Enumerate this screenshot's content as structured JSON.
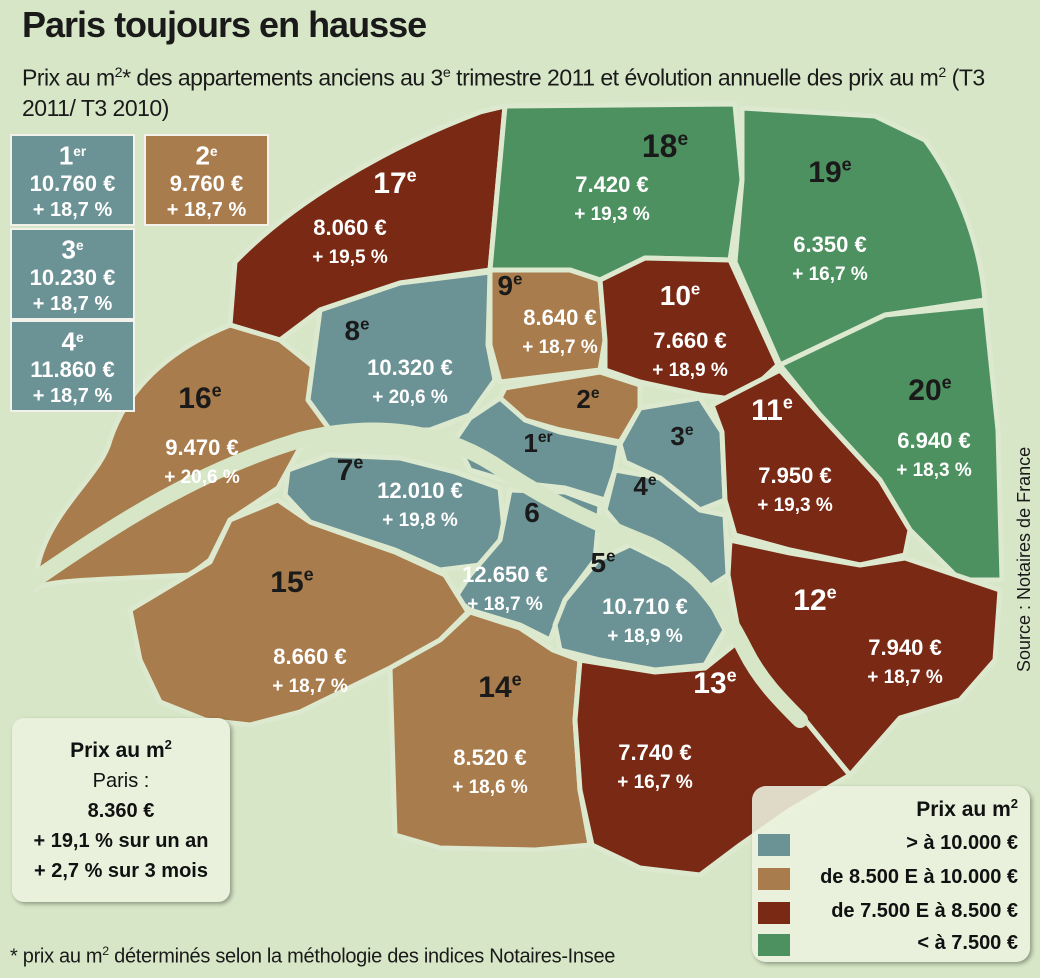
{
  "title": "Paris toujours en hausse",
  "subtitle_parts": [
    "Prix au m",
    "2",
    "* des appartements anciens au 3",
    "e",
    " trimestre 2011 et évolution annuelle des prix au m",
    "2",
    " (T3 2011/ T3 2010)"
  ],
  "colors": {
    "above_10000": "#6b9294",
    "8500_10000": "#a87c4c",
    "7500_8500": "#7a2a14",
    "below_7500": "#4e9160",
    "background": "#d6e6c6",
    "river": "#d6e6c6"
  },
  "districts": [
    {
      "label": "17",
      "suffix": "e",
      "price": "8.060 €",
      "evolution": "+ 19,5 %"
    },
    {
      "label": "18",
      "suffix": "e",
      "price": "7.420 €",
      "evolution": "+ 19,3 %"
    },
    {
      "label": "19",
      "suffix": "e",
      "price": "6.350 €",
      "evolution": "+ 16,7 %"
    },
    {
      "label": "16",
      "suffix": "e",
      "price": "9.470 €",
      "evolution": "+ 20,6 %"
    },
    {
      "label": "8",
      "suffix": "e",
      "price": "10.320 €",
      "evolution": "+ 20,6 %"
    },
    {
      "label": "9",
      "suffix": "e",
      "price": "8.640 €",
      "evolution": "+ 18,7 %"
    },
    {
      "label": "10",
      "suffix": "e",
      "price": "7.660 €",
      "evolution": "+ 18,9 %"
    },
    {
      "label": "20",
      "suffix": "e",
      "price": "6.940 €",
      "evolution": "+ 18,3 %"
    },
    {
      "label": "2",
      "suffix": "e"
    },
    {
      "label": "1",
      "suffix": "er"
    },
    {
      "label": "3",
      "suffix": "e"
    },
    {
      "label": "11",
      "suffix": "e",
      "price": "7.950 €",
      "evolution": "+ 19,3 %"
    },
    {
      "label": "4",
      "suffix": "e"
    },
    {
      "label": "7",
      "suffix": "e",
      "price": "12.010 €",
      "evolution": "+ 19,8 %"
    },
    {
      "label": "6",
      "suffix": "",
      "price": "12.650 €",
      "evolution": "+ 18,7 %"
    },
    {
      "label": "5",
      "suffix": "e",
      "price": "10.710 €",
      "evolution": "+ 18,9 %"
    },
    {
      "label": "15",
      "suffix": "e",
      "price": "8.660 €",
      "evolution": "+ 18,7 %"
    },
    {
      "label": "14",
      "suffix": "e",
      "price": "8.520 €",
      "evolution": "+ 18,6 %"
    },
    {
      "label": "13",
      "suffix": "e",
      "price": "7.740 €",
      "evolution": "+ 16,7 %"
    },
    {
      "label": "12",
      "suffix": "e",
      "price": "7.940 €",
      "evolution": "+ 18,7 %"
    }
  ],
  "price_boxes": [
    {
      "label": "1",
      "suffix": "er",
      "price": "10.760 €",
      "evolution": "+ 18,7 %",
      "category": "above_10000"
    },
    {
      "label": "2",
      "suffix": "e",
      "price": "9.760 €",
      "evolution": "+ 18,7 %",
      "category": "8500_10000"
    },
    {
      "label": "3",
      "suffix": "e",
      "price": "10.230 €",
      "evolution": "+ 18,7 %",
      "category": "above_10000"
    },
    {
      "label": "4",
      "suffix": "e",
      "price": "11.860 €",
      "evolution": "+ 18,7 %",
      "category": "above_10000"
    }
  ],
  "paris_box": {
    "title": "Prix au m",
    "title_sup": "2",
    "city": "Paris :",
    "price": "8.360 €",
    "year_change": "+ 19,1 % sur un an",
    "quarter_change": "+ 2,7 % sur 3 mois"
  },
  "legend": {
    "title": "Prix au m",
    "title_sup": "2",
    "items": [
      {
        "label": "> à 10.000 €",
        "color": "#6b9294"
      },
      {
        "label": "de 8.500 E à 10.000 €",
        "color": "#a87c4c"
      },
      {
        "label": "de 7.500 E à 8.500 €",
        "color": "#7a2a14"
      },
      {
        "label": "< à 7.500 €",
        "color": "#4e9160"
      }
    ]
  },
  "footnote_parts": [
    "* prix au m",
    "2",
    " déterminés selon la méthologie des indices Notaires-Insee"
  ],
  "source": "Source : Notaires de France"
}
